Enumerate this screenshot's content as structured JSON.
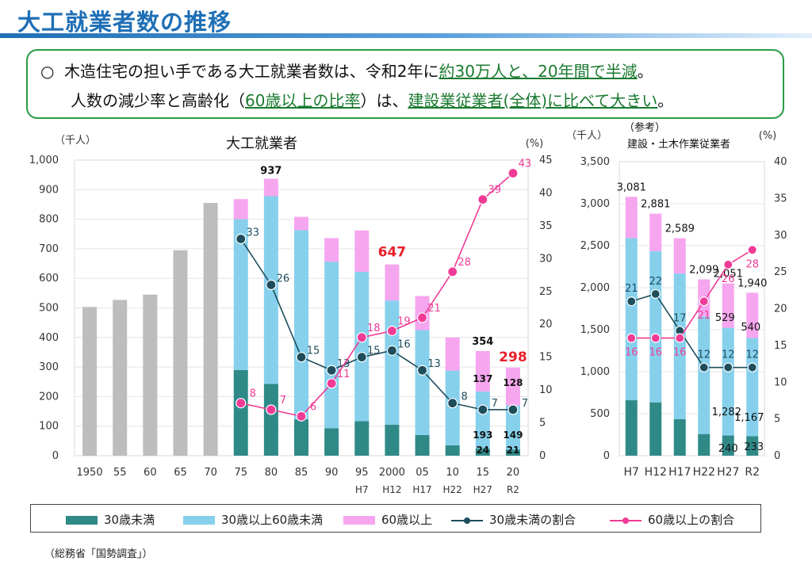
{
  "page": {
    "title": "大工就業者数の推移",
    "summary_bullet": "○",
    "summary_line1_a": "木造住宅の担い手である大工就業者数は、令和2年に",
    "summary_line1_hl": "約30万人と、20年間で半減",
    "summary_line1_b": "。",
    "summary_line2_a": "人数の減少率と高齢化（",
    "summary_line2_hl1": "60歳以上の比率",
    "summary_line2_b": "）は、",
    "summary_line2_hl2": "建設業従業者(全体)に比べて大きい",
    "summary_line2_c": "。",
    "source": "（総務省「国勢調査」）"
  },
  "legend": {
    "under30": "30歳未満",
    "mid": "30歳以上60歳未満",
    "over60": "60歳以上",
    "rate_under30": "30歳未満の割合",
    "rate_over60": "60歳以上の割合"
  },
  "colors": {
    "gray": "#bdbdbd",
    "under30": "#2f8a87",
    "mid": "#86d0ec",
    "over60": "#f6a6ef",
    "rate_under30": "#1e4d5c",
    "rate_over60": "#f03b96",
    "highlight_total": "#e8202a",
    "title_blue": "#1f6fb5",
    "summary_border": "#2a9a45"
  },
  "chart_data": [
    {
      "type": "bar",
      "title": "大工就業者",
      "yunit_left": "（千人）",
      "yunit_right": "(%)",
      "ylim": [
        0,
        1000
      ],
      "ylim_right": [
        0,
        45
      ],
      "yticks": [
        "0",
        "100",
        "200",
        "300",
        "400",
        "500",
        "600",
        "700",
        "800",
        "900",
        "1,000"
      ],
      "yticks_right": [
        "0",
        "5",
        "10",
        "15",
        "20",
        "25",
        "30",
        "35",
        "40",
        "45"
      ],
      "categories": [
        "1950",
        "55",
        "60",
        "65",
        "70",
        "75",
        "80",
        "85",
        "90",
        "95",
        "2000",
        "05",
        "10",
        "15",
        "20"
      ],
      "era_labels": [
        "",
        "",
        "",
        "",
        "",
        "",
        "",
        "",
        "",
        "H7",
        "H12",
        "H17",
        "H22",
        "H27",
        "R2"
      ],
      "totals_unsplit": [
        503,
        527,
        545,
        695,
        855,
        null,
        null,
        null,
        null,
        null,
        null,
        null,
        null,
        null,
        null
      ],
      "series": [
        {
          "name": "30歳未満",
          "values": [
            null,
            null,
            null,
            null,
            null,
            290,
            243,
            123,
            93,
            117,
            105,
            70,
            35,
            24,
            21
          ]
        },
        {
          "name": "30歳以上60歳未満",
          "values": [
            null,
            null,
            null,
            null,
            null,
            510,
            635,
            640,
            563,
            505,
            420,
            355,
            253,
            193,
            149
          ]
        },
        {
          "name": "60歳以上",
          "values": [
            null,
            null,
            null,
            null,
            null,
            68,
            59,
            45,
            80,
            140,
            122,
            115,
            112,
            137,
            128
          ]
        }
      ],
      "totals_labeled": {
        "80": "937",
        "2000": "647",
        "15": "354",
        "20": "298"
      },
      "segment_labels": {
        "15": {
          "under30": "24",
          "mid": "193",
          "over60": "137"
        },
        "20": {
          "under30": "21",
          "mid": "149",
          "over60": "128"
        }
      },
      "rate_under30": [
        null,
        null,
        null,
        null,
        null,
        33,
        26,
        15,
        13,
        15,
        16,
        13,
        8,
        7,
        7
      ],
      "rate_over60": [
        null,
        null,
        null,
        null,
        null,
        8,
        7,
        6,
        11,
        18,
        19,
        21,
        28,
        39,
        43
      ],
      "rate_under30_labels": [
        "",
        "",
        "",
        "",
        "",
        "33",
        "26",
        "15",
        "13",
        "15",
        "16",
        "13",
        "8",
        "7",
        "7"
      ],
      "rate_over60_labels": [
        "",
        "",
        "",
        "",
        "",
        "8",
        "7",
        "6",
        "11",
        "18",
        "19",
        "21",
        "28",
        "39",
        "43"
      ]
    },
    {
      "type": "bar",
      "title": "（参考）",
      "subtitle": "建設・土木作業従業者",
      "yunit_left": "（千人）",
      "yunit_right": "(%)",
      "ylim": [
        0,
        3500
      ],
      "ylim_right": [
        0,
        40
      ],
      "yticks": [
        "0",
        "500",
        "1,000",
        "1,500",
        "2,000",
        "2,500",
        "3,000",
        "3,500"
      ],
      "yticks_right": [
        "0",
        "5",
        "10",
        "15",
        "20",
        "25",
        "30",
        "35",
        "40"
      ],
      "categories": [
        "H7",
        "H12",
        "H17",
        "H22",
        "H27",
        "R2"
      ],
      "series": [
        {
          "name": "30歳未満",
          "values": [
            660,
            635,
            435,
            258,
            240,
            233
          ]
        },
        {
          "name": "30歳以上60歳未満",
          "values": [
            1930,
            1800,
            1734,
            1400,
            1282,
            1167
          ]
        },
        {
          "name": "60歳以上",
          "values": [
            491,
            446,
            420,
            441,
            529,
            540
          ]
        }
      ],
      "totals": [
        "3,081",
        "2,881",
        "2,589",
        "2,099",
        "2,051",
        "1,940"
      ],
      "segment_labels": {
        "H27": {
          "under30": "240",
          "mid": "1,282",
          "over60": "529"
        },
        "R2": {
          "under30": "233",
          "mid": "1,167",
          "over60": "540"
        }
      },
      "rate_under30": [
        21,
        22,
        17,
        12,
        12,
        12
      ],
      "rate_over60": [
        16,
        16,
        16,
        21,
        26,
        28
      ],
      "rate_under30_labels": [
        "21",
        "22",
        "17",
        "12",
        "12",
        "12"
      ],
      "rate_over60_labels": [
        "16",
        "16",
        "16",
        "21",
        "26",
        "28"
      ]
    }
  ]
}
